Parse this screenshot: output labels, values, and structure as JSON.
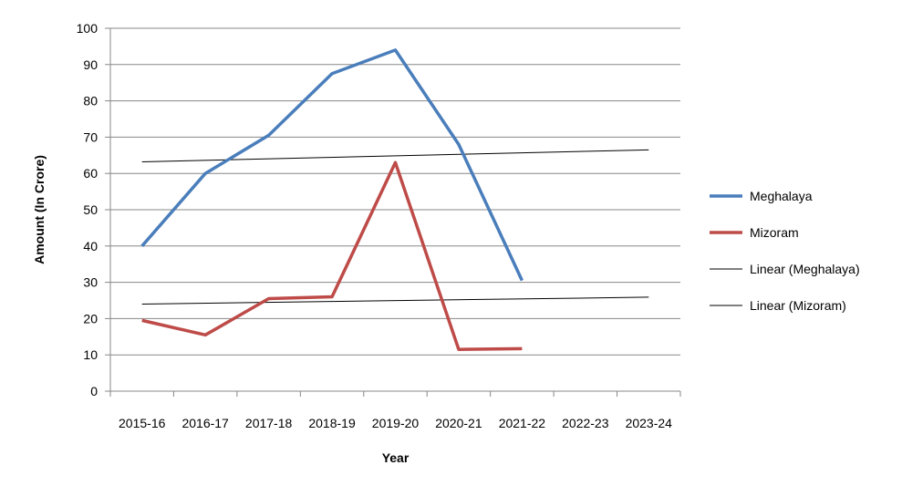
{
  "chart_data": {
    "type": "line",
    "xlabel": "Year",
    "ylabel": "Amount (In Crore)",
    "ylim": [
      0,
      100
    ],
    "yticks": [
      0,
      10,
      20,
      30,
      40,
      50,
      60,
      70,
      80,
      90,
      100
    ],
    "grid": true,
    "legend_position": "right",
    "categories": [
      "2015-16",
      "2016-17",
      "2017-18",
      "2018-19",
      "2019-20",
      "2020-21",
      "2021-22",
      "2022-23",
      "2023-24"
    ],
    "series": [
      {
        "name": "Meghalaya",
        "color": "#4a7ebb",
        "values": [
          40,
          60,
          70.5,
          87.5,
          94,
          68,
          30.5,
          null,
          null
        ]
      },
      {
        "name": "Mizoram",
        "color": "#be4b48",
        "values": [
          19.5,
          15.5,
          25.5,
          26,
          63,
          11.5,
          11.7,
          null,
          null
        ]
      }
    ],
    "trendlines": [
      {
        "name": "Linear (Meghalaya)",
        "color": "#000000",
        "start": 63.2,
        "end": 66.5
      },
      {
        "name": "Linear (Mizoram)",
        "color": "#000000",
        "start": 24,
        "end": 25.9
      }
    ]
  }
}
